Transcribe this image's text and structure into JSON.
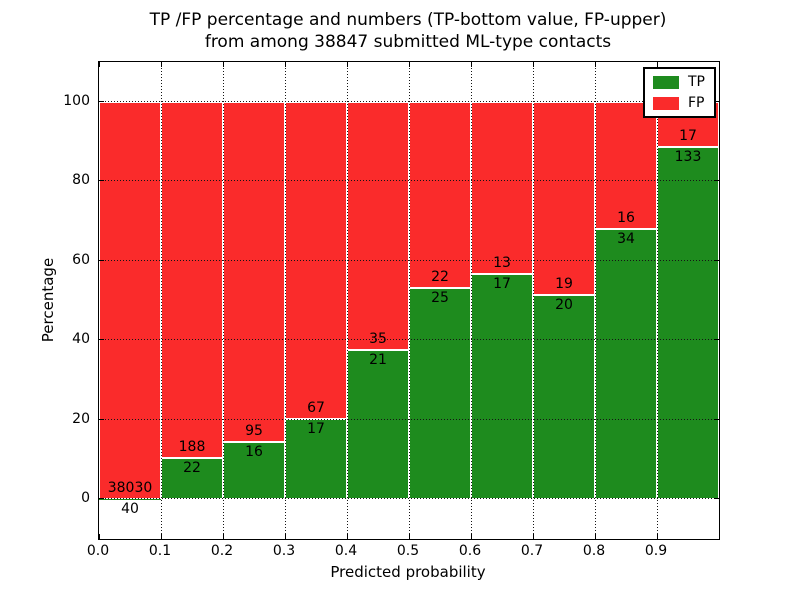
{
  "chart_data": {
    "type": "stacked_bar",
    "title_line1": "TP /FP percentage and numbers (TP-bottom value, FP-upper)",
    "title_line2": "from among 38847 submitted ML-type contacts",
    "xlabel": "Predicted probability",
    "ylabel": "Percentage",
    "x_tick_labels": [
      "0.0",
      "0.1",
      "0.2",
      "0.3",
      "0.4",
      "0.5",
      "0.6",
      "0.7",
      "0.8",
      "0.9"
    ],
    "y_tick_values": [
      0,
      20,
      40,
      60,
      80,
      100
    ],
    "y_tick_labels": [
      "0",
      "20",
      "40",
      "60",
      "80",
      "100"
    ],
    "xlim": [
      0.0,
      1.0
    ],
    "ylim": [
      -10,
      110
    ],
    "grid": "dotted",
    "legend_position": "upper right",
    "series": [
      {
        "name": "TP",
        "color": "#1e8b1e"
      },
      {
        "name": "FP",
        "color": "#fa2b2b"
      }
    ],
    "bins": [
      {
        "x0": 0.0,
        "x1": 0.1,
        "tp": 40,
        "fp": 38030,
        "tp_percent": 0.11
      },
      {
        "x0": 0.1,
        "x1": 0.2,
        "tp": 22,
        "fp": 188,
        "tp_percent": 10.48
      },
      {
        "x0": 0.2,
        "x1": 0.3,
        "tp": 16,
        "fp": 95,
        "tp_percent": 14.41
      },
      {
        "x0": 0.3,
        "x1": 0.4,
        "tp": 17,
        "fp": 67,
        "tp_percent": 20.24
      },
      {
        "x0": 0.4,
        "x1": 0.5,
        "tp": 21,
        "fp": 35,
        "tp_percent": 37.5
      },
      {
        "x0": 0.5,
        "x1": 0.6,
        "tp": 25,
        "fp": 22,
        "tp_percent": 53.19
      },
      {
        "x0": 0.6,
        "x1": 0.7,
        "tp": 17,
        "fp": 13,
        "tp_percent": 56.67
      },
      {
        "x0": 0.7,
        "x1": 0.8,
        "tp": 20,
        "fp": 19,
        "tp_percent": 51.28
      },
      {
        "x0": 0.8,
        "x1": 0.9,
        "tp": 34,
        "fp": 16,
        "tp_percent": 68.0
      },
      {
        "x0": 0.9,
        "x1": 1.0,
        "tp": 133,
        "fp": 17,
        "tp_percent": 88.67
      }
    ]
  }
}
